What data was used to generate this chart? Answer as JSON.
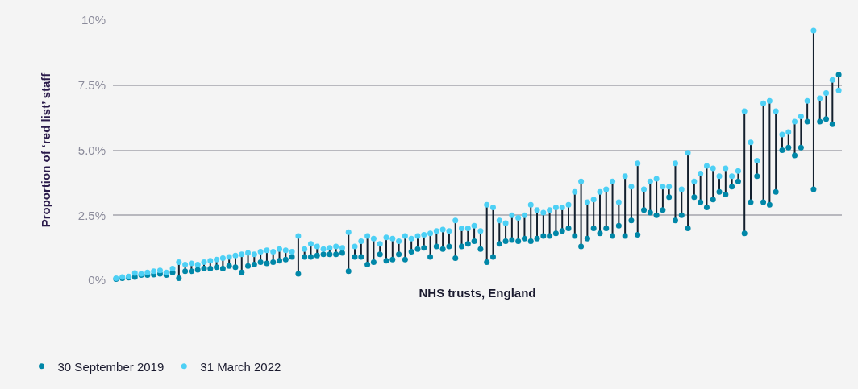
{
  "chart_data": {
    "type": "scatter",
    "xlabel": "NHS trusts, England",
    "ylabel": "Proportion of ‘red list’ staff",
    "categories": [
      null,
      null,
      null,
      null,
      null,
      null,
      null,
      null,
      null,
      null,
      null,
      null,
      null,
      null,
      null,
      null,
      null,
      null,
      null,
      null,
      null,
      null,
      null,
      null,
      null,
      null,
      null,
      null,
      null,
      null,
      null,
      null,
      null,
      null,
      null,
      null,
      null,
      null,
      null,
      null,
      null,
      null,
      null,
      null,
      null,
      null,
      null,
      null,
      null,
      null,
      null,
      null,
      null,
      null,
      null,
      null,
      null,
      null,
      null,
      null,
      null,
      null,
      null,
      null,
      null,
      null,
      null,
      null,
      null,
      null,
      null,
      null,
      null,
      null,
      null,
      null,
      null,
      null,
      null,
      null,
      null,
      null,
      null,
      null,
      null,
      null,
      null,
      null,
      null,
      null,
      null,
      null,
      null,
      null,
      null,
      null,
      null,
      null,
      null,
      null,
      null,
      null,
      null,
      null,
      null,
      null,
      null,
      null,
      null,
      null,
      null,
      null,
      null,
      null,
      null,
      null
    ],
    "series": [
      {
        "name": "30 September 2019",
        "color": "#0087a8",
        "values": [
          0.05,
          0.08,
          0.1,
          0.12,
          0.2,
          0.2,
          0.22,
          0.25,
          0.2,
          0.3,
          0.08,
          0.35,
          0.35,
          0.4,
          0.45,
          0.45,
          0.5,
          0.45,
          0.55,
          0.5,
          0.3,
          0.55,
          0.6,
          0.7,
          0.65,
          0.7,
          0.75,
          0.8,
          0.9,
          0.25,
          0.9,
          0.9,
          0.95,
          1.0,
          1.0,
          1.0,
          1.05,
          0.35,
          0.9,
          0.9,
          0.6,
          0.7,
          1.0,
          0.75,
          0.8,
          1.0,
          0.8,
          1.1,
          1.2,
          1.25,
          0.9,
          1.3,
          1.2,
          1.3,
          0.85,
          1.3,
          1.4,
          1.5,
          1.2,
          0.7,
          0.9,
          1.4,
          1.5,
          1.55,
          1.5,
          1.6,
          1.5,
          1.6,
          1.7,
          1.7,
          1.8,
          1.9,
          2.0,
          1.7,
          1.3,
          1.6,
          2.0,
          1.8,
          2.0,
          1.7,
          2.1,
          1.7,
          2.3,
          1.75,
          2.7,
          2.6,
          2.5,
          2.7,
          3.2,
          2.3,
          2.5,
          2.0,
          3.2,
          3.0,
          2.8,
          3.1,
          3.4,
          3.3,
          3.6,
          3.8,
          1.8,
          3.0,
          4.0,
          3.0,
          2.9,
          3.4,
          5.0,
          5.1,
          4.8,
          5.1,
          6.1,
          3.5,
          6.1,
          6.2,
          6.0,
          7.9
        ]
      },
      {
        "name": "31 March 2022",
        "color": "#4dd0f5",
        "values": [
          0.08,
          0.12,
          0.15,
          0.28,
          0.25,
          0.3,
          0.35,
          0.38,
          0.3,
          0.45,
          0.7,
          0.6,
          0.65,
          0.6,
          0.7,
          0.75,
          0.8,
          0.85,
          0.9,
          0.95,
          1.0,
          1.05,
          1.0,
          1.1,
          1.15,
          1.1,
          1.2,
          1.15,
          1.1,
          1.7,
          1.2,
          1.4,
          1.3,
          1.2,
          1.25,
          1.3,
          1.25,
          1.85,
          1.3,
          1.5,
          1.7,
          1.6,
          1.4,
          1.65,
          1.6,
          1.5,
          1.7,
          1.6,
          1.7,
          1.75,
          1.8,
          1.9,
          1.95,
          1.9,
          2.3,
          2.0,
          2.0,
          2.1,
          1.9,
          2.9,
          2.8,
          2.3,
          2.2,
          2.5,
          2.4,
          2.5,
          2.9,
          2.7,
          2.6,
          2.7,
          2.8,
          2.8,
          2.9,
          3.4,
          3.8,
          3.0,
          3.1,
          3.4,
          3.5,
          3.8,
          3.0,
          4.0,
          3.6,
          4.5,
          3.5,
          3.8,
          3.9,
          3.6,
          3.6,
          4.5,
          3.5,
          4.9,
          3.8,
          4.1,
          4.4,
          4.3,
          4.0,
          4.3,
          4.0,
          4.2,
          6.5,
          5.3,
          4.6,
          6.8,
          6.9,
          6.5,
          5.6,
          5.7,
          6.1,
          6.3,
          6.9,
          9.6,
          7.0,
          7.2,
          7.7,
          7.3
        ]
      }
    ],
    "ylim": [
      0,
      10
    ],
    "yticks": [
      {
        "value": 0,
        "label": "0%"
      },
      {
        "value": 2.5,
        "label": "2.5%"
      },
      {
        "value": 5,
        "label": "5.0%"
      },
      {
        "value": 7.5,
        "label": "7.5%"
      },
      {
        "value": 10,
        "label": "10%"
      }
    ],
    "grid": "y",
    "legend": "bottom left",
    "marker": "circle"
  }
}
